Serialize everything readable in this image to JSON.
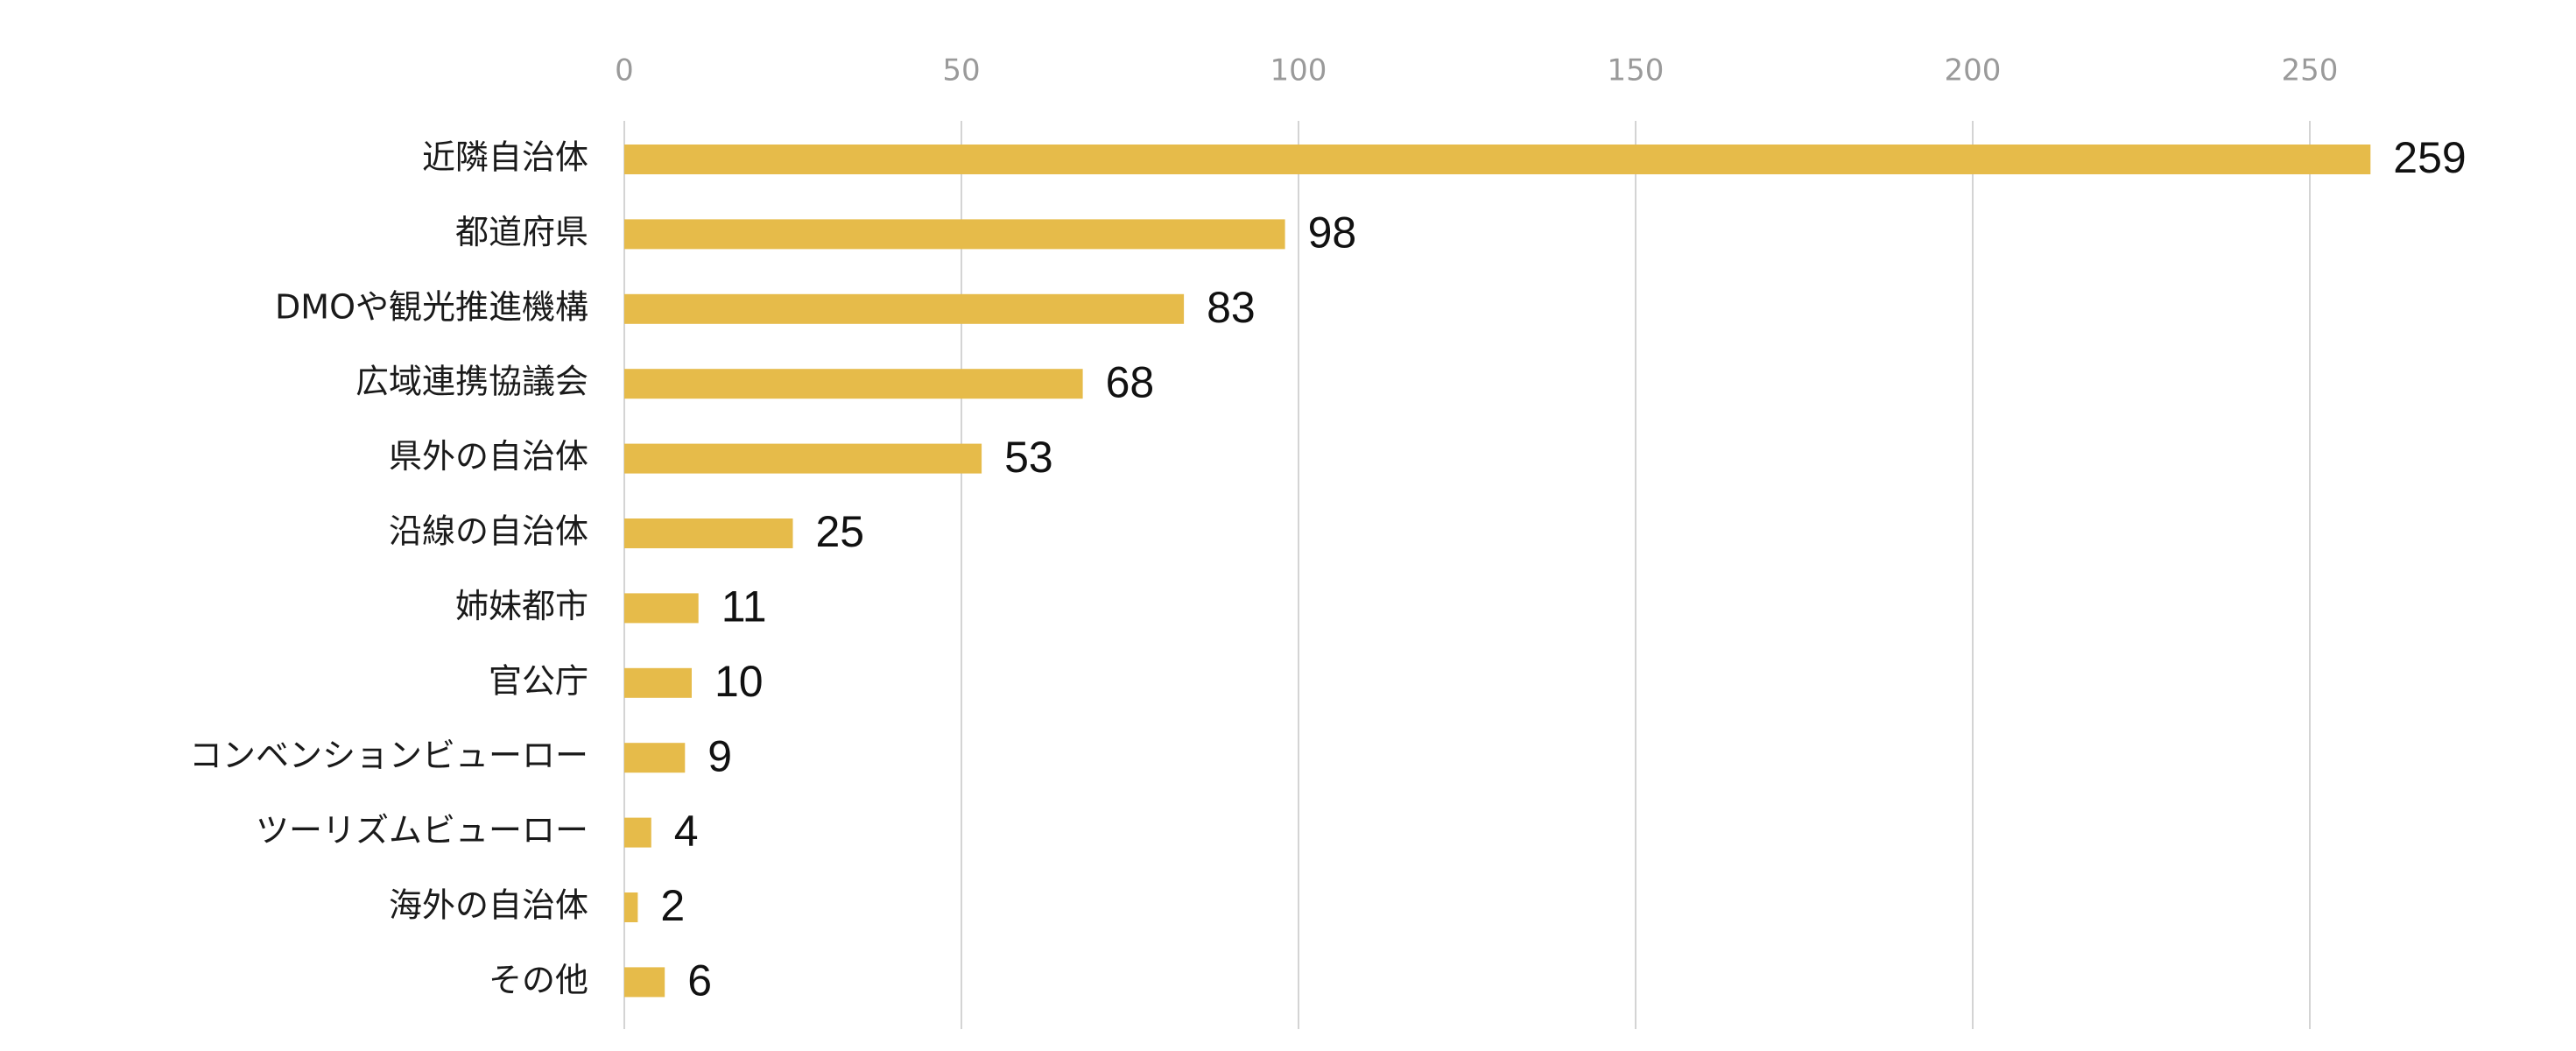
{
  "chart_data": {
    "type": "bar",
    "orientation": "horizontal",
    "title": "",
    "xlabel": "",
    "ylabel": "",
    "xlim": [
      0,
      275
    ],
    "ticks": [
      0,
      50,
      100,
      150,
      200,
      250
    ],
    "grid": true,
    "color": "#E6BB4A",
    "categories": [
      "近隣自治体",
      "都道府県",
      "DMOや観光推進機構",
      "広域連携協議会",
      "県外の自治体",
      "沿線の自治体",
      "姉妹都市",
      "官公庁",
      "コンベンションビューロー",
      "ツーリズムビューロー",
      "海外の自治体",
      "その他"
    ],
    "values": [
      259,
      98,
      83,
      68,
      53,
      25,
      11,
      10,
      9,
      4,
      2,
      6
    ]
  }
}
